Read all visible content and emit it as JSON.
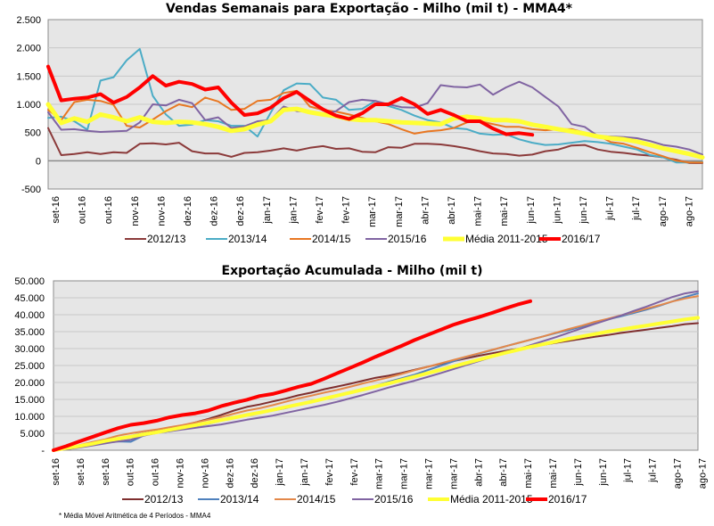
{
  "chart_data": [
    {
      "type": "line",
      "title": "Vendas Semanais para Exportação - Milho (mil t) - MMA4*",
      "xlabel": "",
      "ylabel": "",
      "ylim": [
        -500,
        2500
      ],
      "yticks": [
        -500,
        0,
        500,
        1000,
        1500,
        2000,
        2500
      ],
      "ytick_labels": [
        "-500",
        "0",
        "500",
        "1.000",
        "1.500",
        "2.000",
        "2.500"
      ],
      "grid": true,
      "legend": "bottom",
      "n_points": 51,
      "xtick_labels": [
        "set-16",
        "out-16",
        "out-16",
        "nov-16",
        "nov-16",
        "dez-16",
        "dez-16",
        "dez-16",
        "jan-17",
        "jan-17",
        "fev-17",
        "fev-17",
        "mar-17",
        "mar-17",
        "abr-17",
        "abr-17",
        "mai-17",
        "mai-17",
        "jun-17",
        "jun-17",
        "jun-17",
        "jul-17",
        "jul-17",
        "ago-17",
        "ago-17"
      ],
      "series": [
        {
          "name": "2012/13",
          "color": "#8B3A3A",
          "width": 2,
          "values": [
            580,
            100,
            120,
            150,
            120,
            150,
            140,
            300,
            310,
            290,
            320,
            170,
            130,
            130,
            70,
            140,
            150,
            180,
            220,
            180,
            230,
            260,
            210,
            220,
            160,
            150,
            240,
            230,
            300,
            300,
            290,
            260,
            220,
            170,
            130,
            120,
            90,
            110,
            170,
            200,
            270,
            280,
            200,
            160,
            140,
            110,
            90,
            60,
            20,
            -40,
            -40
          ]
        },
        {
          "name": "2013/14",
          "color": "#4BACC6",
          "width": 2,
          "values": [
            760,
            780,
            700,
            550,
            1420,
            1480,
            1780,
            1980,
            1150,
            820,
            620,
            640,
            720,
            700,
            620,
            620,
            430,
            850,
            1250,
            1370,
            1360,
            1120,
            1080,
            900,
            920,
            1060,
            970,
            900,
            800,
            720,
            680,
            580,
            560,
            480,
            460,
            470,
            380,
            320,
            280,
            290,
            320,
            350,
            330,
            300,
            250,
            200,
            100,
            60,
            -30,
            -30,
            -20
          ]
        },
        {
          "name": "2014/15",
          "color": "#E87722",
          "width": 2,
          "values": [
            900,
            720,
            1040,
            1080,
            1060,
            990,
            620,
            590,
            730,
            880,
            1000,
            950,
            1120,
            1050,
            900,
            920,
            1060,
            1080,
            1200,
            1240,
            960,
            900,
            870,
            820,
            760,
            700,
            650,
            560,
            480,
            520,
            540,
            580,
            680,
            700,
            650,
            600,
            600,
            560,
            540,
            560,
            560,
            500,
            450,
            330,
            300,
            230,
            150,
            80,
            0,
            -30,
            -30
          ]
        },
        {
          "name": "2015/16",
          "color": "#8064A2",
          "width": 2,
          "values": [
            860,
            550,
            560,
            530,
            510,
            520,
            530,
            680,
            1000,
            980,
            1080,
            1020,
            720,
            770,
            580,
            610,
            700,
            720,
            960,
            880,
            870,
            830,
            880,
            1040,
            1080,
            1060,
            1000,
            950,
            940,
            1020,
            1340,
            1310,
            1300,
            1350,
            1170,
            1300,
            1400,
            1300,
            1130,
            960,
            650,
            600,
            440,
            430,
            420,
            400,
            350,
            280,
            250,
            200,
            110
          ]
        },
        {
          "name": "Média 2011-2015",
          "color": "#FFFF33",
          "width": 5,
          "values": [
            1000,
            670,
            750,
            690,
            820,
            770,
            700,
            770,
            690,
            670,
            690,
            680,
            650,
            600,
            530,
            560,
            640,
            700,
            900,
            920,
            860,
            820,
            790,
            740,
            720,
            720,
            700,
            680,
            670,
            660,
            650,
            750,
            780,
            750,
            720,
            720,
            700,
            640,
            600,
            560,
            520,
            480,
            430,
            400,
            380,
            340,
            280,
            220,
            170,
            120,
            60
          ]
        },
        {
          "name": "2016/17",
          "color": "#FF0000",
          "width": 4,
          "values": [
            1670,
            1070,
            1100,
            1120,
            1180,
            1030,
            1130,
            1300,
            1500,
            1330,
            1400,
            1360,
            1260,
            1300,
            1030,
            810,
            840,
            940,
            1110,
            1220,
            1060,
            910,
            800,
            740,
            840,
            1000,
            1000,
            1110,
            1000,
            830,
            900,
            810,
            700,
            700,
            570,
            470,
            490,
            460,
            null,
            null,
            null,
            null,
            null,
            null,
            null,
            null,
            null,
            null,
            null,
            null,
            null
          ]
        }
      ]
    },
    {
      "type": "line",
      "title": "Exportação Acumulada - Milho (mil t)",
      "xlabel": "",
      "ylabel": "",
      "ylim": [
        0,
        50000
      ],
      "yticks": [
        0,
        5000,
        10000,
        15000,
        20000,
        25000,
        30000,
        35000,
        40000,
        45000,
        50000
      ],
      "ytick_labels": [
        "-",
        "5.000",
        "10.000",
        "15.000",
        "20.000",
        "25.000",
        "30.000",
        "35.000",
        "40.000",
        "45.000",
        "50.000"
      ],
      "grid": true,
      "legend": "bottom",
      "n_points": 51,
      "xtick_labels": [
        "set-16",
        "set-16",
        "set-16",
        "out-16",
        "out-16",
        "nov-16",
        "nov-16",
        "dez-16",
        "dez-16",
        "jan-17",
        "jan-17",
        "fev-17",
        "fev-17",
        "mar-17",
        "mar-17",
        "mar-17",
        "mar-17",
        "abr-17",
        "abr-17",
        "mai-17",
        "mai-17",
        "jun-17",
        "jun-17",
        "jul-17",
        "jul-17",
        "ago-17",
        "ago-17"
      ],
      "series": [
        {
          "name": "2012/13",
          "color": "#7F2F2F",
          "width": 2,
          "values": [
            0,
            300,
            900,
            1500,
            2400,
            3300,
            4200,
            5000,
            5600,
            6300,
            7200,
            8200,
            9200,
            10400,
            11700,
            12800,
            13500,
            14400,
            15200,
            16200,
            17000,
            18000,
            18800,
            19600,
            20500,
            21400,
            22000,
            22800,
            23700,
            24600,
            25500,
            26300,
            27100,
            27900,
            28600,
            29300,
            29900,
            30500,
            31100,
            31700,
            32300,
            32900,
            33500,
            34000,
            34600,
            35100,
            35600,
            36100,
            36600,
            37200,
            37500
          ]
        },
        {
          "name": "2013/14",
          "color": "#4F81BD",
          "width": 2,
          "values": [
            0,
            500,
            1100,
            1700,
            2300,
            2600,
            2500,
            4400,
            5200,
            5600,
            6300,
            7100,
            7800,
            8700,
            9600,
            10600,
            11200,
            11700,
            12400,
            13400,
            14400,
            15400,
            16300,
            17200,
            18100,
            19000,
            20200,
            21200,
            22300,
            23600,
            24900,
            26200,
            27500,
            28500,
            29500,
            30600,
            31600,
            32600,
            33600,
            34600,
            35500,
            36500,
            37600,
            38600,
            39500,
            40500,
            41500,
            42600,
            43900,
            45200,
            46300
          ]
        },
        {
          "name": "2014/15",
          "color": "#E3884A",
          "width": 2,
          "values": [
            0,
            700,
            1500,
            2400,
            3200,
            4300,
            5000,
            5600,
            6100,
            6800,
            7400,
            8200,
            9000,
            9800,
            10800,
            11700,
            12400,
            13300,
            14300,
            15300,
            16100,
            17000,
            17800,
            18700,
            19700,
            20600,
            21500,
            22500,
            23600,
            24600,
            25600,
            26600,
            27600,
            28600,
            29600,
            30600,
            31600,
            32600,
            33600,
            34700,
            35800,
            36800,
            37900,
            38800,
            39800,
            40800,
            41800,
            42800,
            43900,
            44800,
            45500
          ]
        },
        {
          "name": "2015/16",
          "color": "#8064A2",
          "width": 2,
          "values": [
            0,
            300,
            800,
            1400,
            2000,
            2600,
            3100,
            4300,
            5100,
            5600,
            6100,
            6600,
            7100,
            7600,
            8300,
            9000,
            9600,
            10200,
            11000,
            11800,
            12600,
            13400,
            14300,
            15300,
            16300,
            17400,
            18500,
            19500,
            20500,
            21600,
            22700,
            23900,
            25100,
            26300,
            27500,
            28600,
            29800,
            31000,
            32200,
            33400,
            34700,
            36000,
            37300,
            38500,
            39700,
            41100,
            42400,
            43800,
            45200,
            46300,
            46900
          ]
        },
        {
          "name": "Média 2011-2015",
          "color": "#FFFF33",
          "width": 4,
          "values": [
            0,
            600,
            1200,
            1900,
            2700,
            3400,
            4000,
            4700,
            5300,
            6000,
            6700,
            7400,
            8100,
            8900,
            9600,
            10400,
            11100,
            11900,
            12700,
            13500,
            14300,
            15200,
            16100,
            17000,
            17900,
            18800,
            19700,
            20700,
            21700,
            22700,
            23700,
            24700,
            25700,
            26700,
            27700,
            28700,
            29600,
            30500,
            31300,
            32100,
            32900,
            33600,
            34300,
            35000,
            35600,
            36200,
            36800,
            37400,
            38000,
            38600,
            39100
          ]
        },
        {
          "name": "2016/17",
          "color": "#FF0000",
          "width": 4,
          "values": [
            0,
            1200,
            2600,
            3900,
            5200,
            6500,
            7500,
            8000,
            8700,
            9700,
            10400,
            10900,
            11700,
            13000,
            14000,
            14900,
            16000,
            16600,
            17600,
            18700,
            19600,
            21100,
            22700,
            24300,
            25900,
            27600,
            29200,
            30800,
            32500,
            34000,
            35500,
            37000,
            38200,
            39300,
            40500,
            41800,
            43000,
            44000,
            null,
            null,
            null,
            null,
            null,
            null,
            null,
            null,
            null,
            null,
            null,
            null,
            null
          ]
        }
      ]
    }
  ],
  "footnote": "* Média Móvel Aritmética de 4 Períodos - MMA4"
}
